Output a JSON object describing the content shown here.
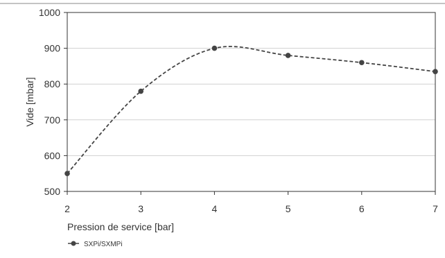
{
  "chart_data": {
    "type": "line",
    "title": "",
    "xlabel": "Pression de service [bar]",
    "ylabel": "Vide [mbar]",
    "x": [
      2,
      3,
      4,
      5,
      6,
      7
    ],
    "xlim": [
      2,
      7
    ],
    "ylim": [
      500,
      1000
    ],
    "x_ticks": [
      "2",
      "3",
      "4",
      "5",
      "6",
      "7"
    ],
    "y_ticks": [
      "500",
      "600",
      "700",
      "800",
      "900",
      "1000"
    ],
    "grid": "horizontal",
    "legend": "bottom-left",
    "line_style": "dashed-smooth",
    "series": [
      {
        "name": "SXPi/SXMPi",
        "color": "#444444",
        "values": [
          550,
          780,
          900,
          880,
          860,
          835
        ]
      }
    ]
  }
}
